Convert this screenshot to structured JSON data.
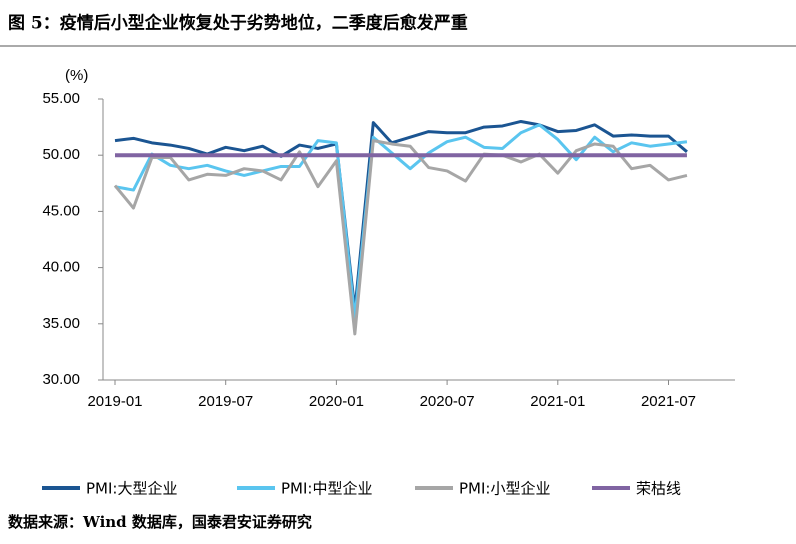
{
  "chart_data": {
    "type": "line",
    "title": "图 5：疫情后小型企业恢复处于劣势地位，二季度后愈发严重",
    "y_unit": "(%)",
    "source": "数据来源：Wind 数据库，国泰君安证券研究",
    "categories": [
      "2019-01",
      null,
      null,
      null,
      null,
      null,
      "2019-07",
      null,
      null,
      null,
      null,
      null,
      "2020-01",
      null,
      null,
      null,
      null,
      null,
      "2020-07",
      null,
      null,
      null,
      null,
      null,
      "2021-01",
      null,
      null,
      null,
      null,
      null,
      "2021-07",
      null
    ],
    "series": [
      {
        "name": "PMI:大型企业",
        "color": "#1b5592",
        "values": [
          51.3,
          51.5,
          51.1,
          50.9,
          50.6,
          50.1,
          50.7,
          50.4,
          50.8,
          49.9,
          50.9,
          50.6,
          51.0,
          36.2,
          52.9,
          51.1,
          51.6,
          52.1,
          52.0,
          52.0,
          52.5,
          52.6,
          53.0,
          52.7,
          52.1,
          52.2,
          52.7,
          51.7,
          51.8,
          51.7,
          51.7,
          50.3
        ]
      },
      {
        "name": "PMI:中型企业",
        "color": "#5ac5ef",
        "values": [
          47.2,
          46.9,
          50.1,
          49.1,
          48.8,
          49.1,
          48.6,
          48.2,
          48.6,
          49.0,
          49.0,
          51.3,
          51.1,
          35.5,
          51.6,
          50.2,
          48.8,
          50.2,
          51.2,
          51.6,
          50.7,
          50.6,
          52.0,
          52.7,
          51.4,
          49.6,
          51.6,
          50.3,
          51.1,
          50.8,
          51.0,
          51.2
        ]
      },
      {
        "name": "PMI:小型企业",
        "color": "#a6a6a6",
        "values": [
          47.3,
          45.3,
          49.8,
          49.8,
          47.8,
          48.3,
          48.2,
          48.8,
          48.6,
          47.8,
          50.3,
          47.2,
          49.5,
          34.1,
          51.3,
          51.0,
          50.8,
          48.9,
          48.6,
          47.7,
          50.1,
          50.0,
          49.4,
          50.1,
          48.4,
          50.4,
          51.0,
          50.8,
          48.8,
          49.1,
          47.8,
          48.2
        ]
      },
      {
        "name": "荣枯线",
        "color": "#8064a2",
        "values": [
          50,
          50,
          50,
          50,
          50,
          50,
          50,
          50,
          50,
          50,
          50,
          50,
          50,
          50,
          50,
          50,
          50,
          50,
          50,
          50,
          50,
          50,
          50,
          50,
          50,
          50,
          50,
          50,
          50,
          50,
          50,
          50
        ]
      }
    ],
    "ylim": [
      30,
      55
    ],
    "yticks": [
      {
        "value": 30,
        "label": "30.00"
      },
      {
        "value": 35,
        "label": "35.00"
      },
      {
        "value": 40,
        "label": "40.00"
      },
      {
        "value": 45,
        "label": "45.00"
      },
      {
        "value": 50,
        "label": "50.00"
      },
      {
        "value": 55,
        "label": "55.00"
      }
    ]
  }
}
